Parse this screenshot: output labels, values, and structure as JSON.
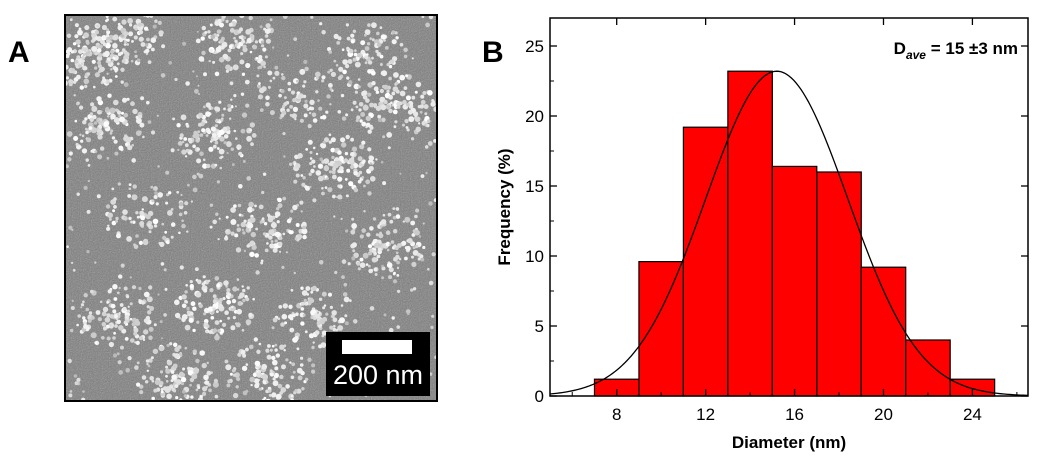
{
  "panels": {
    "a_label": "A",
    "b_label": "B"
  },
  "micrograph": {
    "scale_bar_label": "200 nm"
  },
  "chart_data": {
    "type": "bar",
    "subtype": "histogram",
    "xlabel": "Diameter (nm)",
    "ylabel": "Frequency (%)",
    "xlim": [
      5,
      26.5
    ],
    "ylim": [
      0,
      27
    ],
    "xticks": [
      8,
      12,
      16,
      20,
      24
    ],
    "yticks": [
      0,
      5,
      10,
      15,
      20,
      25
    ],
    "bin_width": 2,
    "bins": [
      {
        "center": 8,
        "value": 1.2
      },
      {
        "center": 10,
        "value": 9.6
      },
      {
        "center": 12,
        "value": 19.2
      },
      {
        "center": 14,
        "value": 23.2
      },
      {
        "center": 16,
        "value": 16.4
      },
      {
        "center": 18,
        "value": 16.0
      },
      {
        "center": 20,
        "value": 9.2
      },
      {
        "center": 22,
        "value": 4.0
      },
      {
        "center": 24,
        "value": 1.2
      }
    ],
    "fit": {
      "type": "gaussian",
      "mean": 15.2,
      "sd": 3.2,
      "peak": 23.2
    },
    "annotation": {
      "main": "D",
      "sub": "ave",
      "rest": " = 15 ±3 nm"
    },
    "bar_color": "#ff0000",
    "edge_color": "#000000",
    "grid": false,
    "legend": false
  }
}
